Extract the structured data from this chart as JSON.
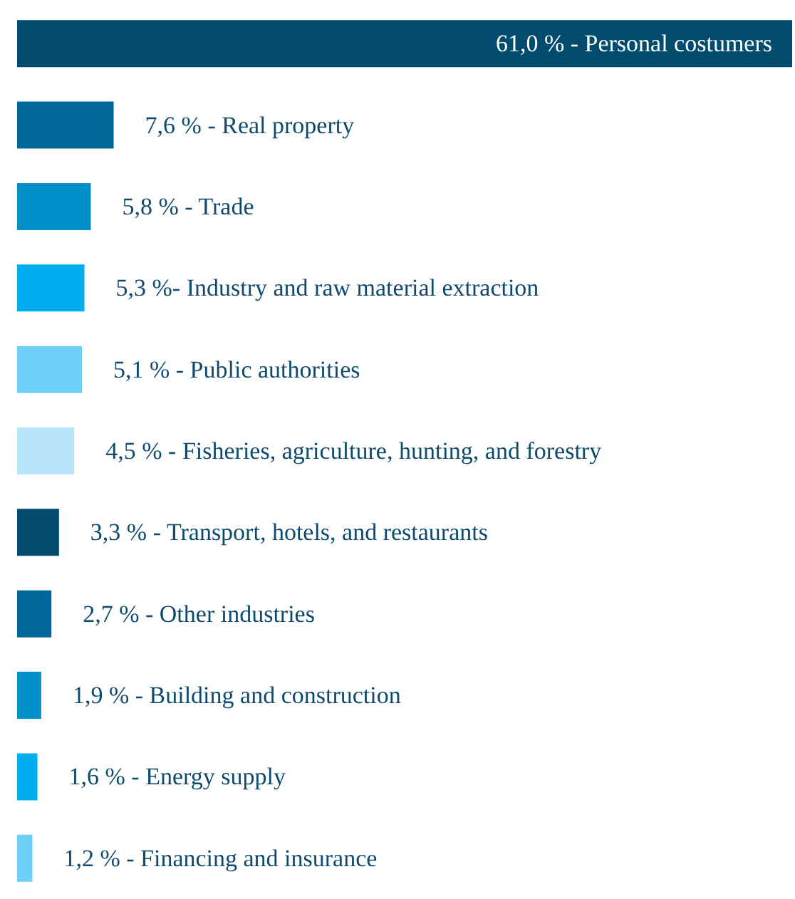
{
  "chart_data": {
    "type": "bar",
    "orientation": "horizontal",
    "categories": [
      null,
      null,
      null,
      null,
      null,
      null,
      null,
      null,
      null,
      null,
      null
    ],
    "values": [
      61.0,
      7.6,
      5.8,
      5.3,
      5.1,
      4.5,
      3.3,
      2.7,
      1.9,
      1.6,
      1.2
    ],
    "colors": [
      "#004b6e",
      "#00689a",
      "#008fc8",
      "#00aeef",
      "#6ccff6",
      "#b9e5fa",
      "#004b6e",
      "#00689a",
      "#008fc8",
      "#00aeef",
      "#6ccff6"
    ],
    "value_labels": [
      "61,0 % - Personal costumers",
      "7,6 % - Real property",
      "5,8 % - Trade",
      "5,3 %- Industry and raw material extraction",
      "5,1 % - Public authorities",
      "4,5 % - Fisheries, agriculture, hunting, and forestry",
      "3,3 % - Transport, hotels, and restaurants",
      "2,7 % - Other industries",
      "1,9 % - Building and construction",
      "1,6 % - Energy supply",
      "1,2 % - Financing and insurance"
    ],
    "xlim": [
      0,
      61
    ],
    "tick_labels": false,
    "grid": false
  }
}
